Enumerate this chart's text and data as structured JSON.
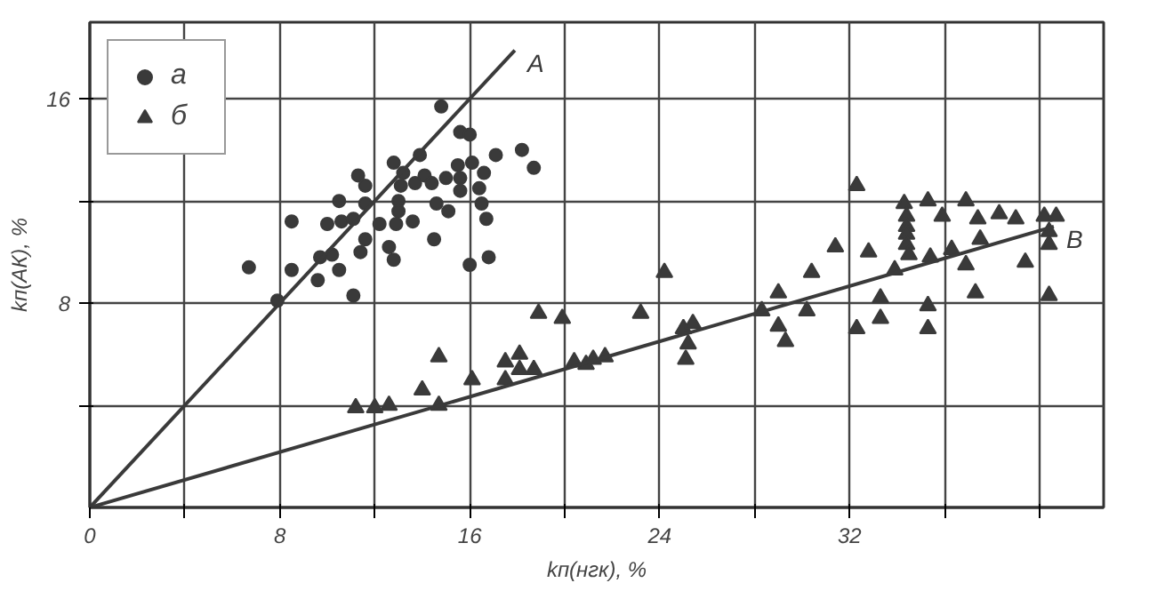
{
  "chart_data": {
    "type": "scatter",
    "xlabel": "kп(нгк), %",
    "ylabel": "kп(АК), %",
    "xlim": [
      0,
      42.7
    ],
    "ylim": [
      0,
      19
    ],
    "xticks": [
      0,
      {
        "value": 4,
        "label": null
      },
      8,
      {
        "value": 12,
        "label": null
      },
      16,
      {
        "value": 20,
        "label": null
      },
      24,
      {
        "value": 28,
        "label": null
      },
      32,
      {
        "value": 36,
        "label": null
      },
      {
        "value": 40,
        "label": null
      }
    ],
    "yticks": [
      {
        "value": 4,
        "label": null
      },
      8,
      {
        "value": 12,
        "label": null
      },
      16
    ],
    "grid": true,
    "legend": "top left",
    "series": [
      {
        "name": "а",
        "marker": "circle",
        "color": "#3a3a3a",
        "x": [
          14.8,
          15.6,
          16.0,
          12.8,
          13.9,
          15.5,
          16.1,
          17.1,
          18.2,
          18.7,
          11.3,
          11.6,
          13.2,
          13.1,
          13.7,
          14.1,
          14.4,
          15.0,
          15.6,
          15.6,
          16.4,
          16.6,
          10.5,
          11.6,
          13.0,
          13.0,
          14.6,
          16.5,
          15.1,
          8.5,
          10.0,
          10.6,
          11.1,
          12.2,
          12.9,
          13.6,
          16.7,
          11.6,
          14.5,
          11.4,
          12.6,
          12.8,
          9.7,
          10.2,
          8.5,
          10.5,
          9.6,
          6.7,
          16.0,
          16.8,
          11.1,
          7.9
        ],
        "values": [
          15.7,
          14.7,
          14.6,
          13.5,
          13.8,
          13.4,
          13.5,
          13.8,
          14.0,
          13.3,
          13.0,
          12.6,
          13.1,
          12.6,
          12.7,
          13.0,
          12.7,
          12.9,
          12.9,
          12.4,
          12.5,
          13.1,
          12.0,
          11.9,
          12.0,
          11.6,
          11.9,
          11.9,
          11.6,
          11.2,
          11.1,
          11.2,
          11.3,
          11.1,
          11.1,
          11.2,
          11.3,
          10.5,
          10.5,
          10.0,
          10.2,
          9.7,
          9.8,
          9.9,
          9.3,
          9.3,
          8.9,
          9.4,
          9.5,
          9.8,
          8.3,
          8.1
        ]
      },
      {
        "name": "б",
        "marker": "triangle",
        "color": "#3a3a3a",
        "x": [
          11.2,
          12.0,
          12.6,
          14.0,
          14.7,
          14.7,
          16.1,
          17.5,
          18.1,
          17.5,
          18.1,
          18.7,
          18.9,
          19.9,
          20.4,
          20.9,
          21.2,
          21.7,
          23.2,
          24.2,
          25.0,
          25.4,
          25.2,
          25.1,
          28.3,
          29.0,
          29.0,
          29.3,
          30.2,
          30.4,
          31.4,
          32.3,
          32.3,
          32.8,
          33.3,
          33.3,
          33.9,
          34.3,
          34.4,
          34.4,
          34.4,
          34.4,
          34.5,
          35.3,
          35.4,
          35.3,
          35.3,
          35.9,
          36.3,
          36.9,
          37.4,
          37.5,
          36.9,
          37.3,
          38.3,
          39.0,
          39.4,
          40.2,
          40.7,
          40.4,
          40.4,
          40.4
        ],
        "values": [
          3.9,
          3.9,
          4.0,
          4.6,
          5.9,
          4.0,
          5.0,
          5.7,
          6.0,
          5.0,
          5.4,
          5.4,
          7.6,
          7.4,
          5.7,
          5.6,
          5.8,
          5.9,
          7.6,
          9.2,
          7.0,
          7.2,
          6.4,
          5.8,
          7.7,
          8.4,
          7.1,
          6.5,
          7.7,
          9.2,
          10.2,
          12.6,
          7.0,
          10.0,
          8.2,
          7.4,
          9.3,
          11.9,
          11.4,
          11.0,
          10.7,
          10.3,
          9.9,
          12.0,
          9.8,
          7.9,
          7.0,
          11.4,
          10.1,
          12.0,
          11.3,
          10.5,
          9.5,
          8.4,
          11.5,
          11.3,
          9.6,
          11.4,
          11.4,
          10.8,
          10.3,
          8.3
        ]
      },
      {
        "name": "А",
        "type": "line",
        "color": "#3a3a3a",
        "x": [
          0,
          17.9
        ],
        "values": [
          0,
          17.9
        ]
      },
      {
        "name": "В",
        "type": "line",
        "color": "#3a3a3a",
        "x": [
          0,
          40.6
        ],
        "values": [
          0,
          11.0
        ]
      }
    ]
  }
}
